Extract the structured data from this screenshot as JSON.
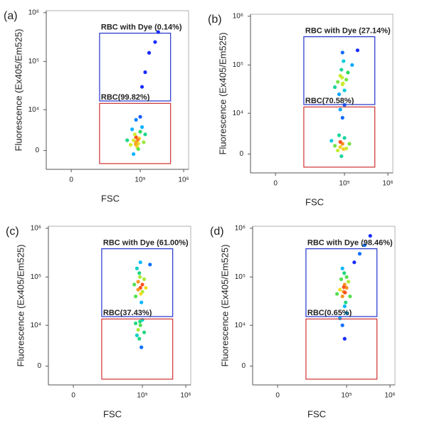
{
  "chart_data": [
    {
      "type": "scatter",
      "panel_label": "(a)",
      "xlabel": "FSC",
      "ylabel": "Fluorescence (Ex405/Em525)",
      "xscale": "biexponential",
      "yscale": "biexponential",
      "xlim": [
        -9000,
        1300000
      ],
      "ylim": [
        -3000,
        1100000
      ],
      "xticks": [
        0,
        {
          "value": 100000,
          "label": "10⁵"
        },
        {
          "value": 1000000,
          "label": "10⁶"
        }
      ],
      "yticks": [
        0,
        {
          "value": 10000,
          "label": "10⁴"
        },
        {
          "value": 100000,
          "label": "10⁵"
        },
        {
          "value": 1000000,
          "label": "10⁶"
        }
      ],
      "gates": [
        {
          "name": "RBC with Dye (0.14%)",
          "color": "#2233cc",
          "xlim": [
            11000,
            500000
          ],
          "ylim": [
            15300,
            380000
          ]
        },
        {
          "name": "RBC(99.82%)",
          "color": "#d03030",
          "xlim": [
            11000,
            500000
          ],
          "ylim": [
            -1950,
            13600
          ]
        }
      ],
      "color": "#1a2cff",
      "x": [
        70000,
        80000,
        90000,
        60000,
        100000,
        85000,
        75000,
        95000,
        110000,
        65000,
        80000,
        120000,
        50000,
        90000,
        70000,
        100000,
        80000,
        88000,
        78000,
        130000,
        110000,
        130000,
        160000,
        260000,
        220000
      ],
      "y": [
        1500,
        2000,
        1000,
        800,
        3000,
        500,
        2500,
        1800,
        4000,
        3500,
        6000,
        1200,
        1500,
        200,
        -500,
        7000,
        1200,
        1600,
        900,
        2500,
        30000,
        60000,
        150000,
        400000,
        250000
      ]
    },
    {
      "type": "scatter",
      "panel_label": "(b)",
      "xlabel": "FSC",
      "ylabel": "Fluorescence (Ex405/Em525)",
      "xscale": "biexponential",
      "yscale": "biexponential",
      "xlim": [
        -9000,
        1300000
      ],
      "ylim": [
        -3000,
        1100000
      ],
      "xticks": [
        0,
        {
          "value": 100000,
          "label": "10⁵"
        },
        {
          "value": 1000000,
          "label": "10⁶"
        }
      ],
      "yticks": [
        0,
        {
          "value": 10000,
          "label": "10⁴"
        },
        {
          "value": 100000,
          "label": "10⁵"
        },
        {
          "value": 1000000,
          "label": "10⁶"
        }
      ],
      "gates": [
        {
          "name": "RBC with Dye (27.14%)",
          "color": "#2233cc",
          "xlim": [
            11000,
            500000
          ],
          "ylim": [
            15300,
            380000
          ]
        },
        {
          "name": "RBC(70.58%)",
          "color": "#d03030",
          "xlim": [
            11000,
            500000
          ],
          "ylim": [
            -1950,
            13600
          ]
        }
      ],
      "color": "#1a2cff",
      "x": [
        80000,
        90000,
        70000,
        100000,
        85000,
        60000,
        110000,
        75000,
        95000,
        50000,
        130000,
        80000,
        90000,
        80000,
        100000,
        90000,
        80000,
        100000,
        85000,
        70000,
        110000,
        95000,
        75000,
        120000,
        60000,
        90000,
        150000,
        200000,
        88000,
        92000
      ],
      "y": [
        1000,
        1500,
        500,
        2500,
        -300,
        1200,
        800,
        3000,
        700,
        2000,
        1500,
        1800,
        8000,
        12000,
        15000,
        40000,
        60000,
        30000,
        80000,
        45000,
        50000,
        120000,
        25000,
        70000,
        35000,
        180000,
        100000,
        200000,
        55000,
        42000
      ]
    },
    {
      "type": "scatter",
      "panel_label": "(c)",
      "xlabel": "FSC",
      "ylabel": "Fluorescence (Ex405/Em525)",
      "xscale": "biexponential",
      "yscale": "biexponential",
      "xlim": [
        -9000,
        1300000
      ],
      "ylim": [
        -3000,
        1100000
      ],
      "xticks": [
        0,
        {
          "value": 100000,
          "label": "10⁵"
        },
        {
          "value": 1000000,
          "label": "10⁶"
        }
      ],
      "yticks": [
        0,
        {
          "value": 10000,
          "label": "10⁴"
        },
        {
          "value": 100000,
          "label": "10⁵"
        },
        {
          "value": 1000000,
          "label": "10⁶"
        }
      ],
      "gates": [
        {
          "name": "RBC with Dye (61.00%)",
          "color": "#2233cc",
          "xlim": [
            11000,
            500000
          ],
          "ylim": [
            15300,
            380000
          ]
        },
        {
          "name": "RBC(37.43%)",
          "color": "#d03030",
          "xlim": [
            11000,
            500000
          ],
          "ylim": [
            -1950,
            13600
          ]
        }
      ],
      "color": "#1a2cff",
      "x": [
        90000,
        80000,
        100000,
        85000,
        70000,
        110000,
        95000,
        75000,
        120000,
        65000,
        90000,
        150000,
        100000,
        88000,
        92000,
        80000,
        90000,
        80000,
        100000,
        85000,
        70000,
        110000,
        95000,
        75000,
        88000
      ],
      "y": [
        60000,
        80000,
        50000,
        120000,
        40000,
        90000,
        30000,
        150000,
        60000,
        70000,
        200000,
        180000,
        70000,
        100000,
        45000,
        55000,
        10000,
        8000,
        13000,
        5000,
        11000,
        7000,
        3000,
        6000,
        12000
      ]
    },
    {
      "type": "scatter",
      "panel_label": "(d)",
      "xlabel": "FSC",
      "ylabel": "Fluorescence (Ex405/Em525)",
      "xscale": "biexponential",
      "yscale": "biexponential",
      "xlim": [
        -9000,
        1300000
      ],
      "ylim": [
        -3000,
        1100000
      ],
      "xticks": [
        0,
        {
          "value": 100000,
          "label": "10⁵"
        },
        {
          "value": 1000000,
          "label": "10⁶"
        }
      ],
      "yticks": [
        0,
        {
          "value": 10000,
          "label": "10⁴"
        },
        {
          "value": 100000,
          "label": "10⁵"
        },
        {
          "value": 1000000,
          "label": "10⁶"
        }
      ],
      "gates": [
        {
          "name": "RBC  with Dye (98.46%)",
          "color": "#2233cc",
          "xlim": [
            11000,
            500000
          ],
          "ylim": [
            15300,
            380000
          ]
        },
        {
          "name": "RBC(0.65%)",
          "color": "#d03030",
          "xlim": [
            11000,
            500000
          ],
          "ylim": [
            -1950,
            13600
          ]
        }
      ],
      "color": "#1a2cff",
      "x": [
        85000,
        90000,
        80000,
        100000,
        75000,
        95000,
        70000,
        110000,
        88000,
        60000,
        90000,
        120000,
        80000,
        100000,
        86000,
        92000,
        150000,
        200000,
        260000,
        350000,
        80000,
        90000,
        70000,
        100000
      ],
      "y": [
        50000,
        70000,
        40000,
        60000,
        90000,
        30000,
        55000,
        80000,
        120000,
        45000,
        25000,
        40000,
        150000,
        100000,
        62000,
        48000,
        200000,
        300000,
        450000,
        700000,
        10000,
        5000,
        14000,
        18000
      ]
    }
  ]
}
